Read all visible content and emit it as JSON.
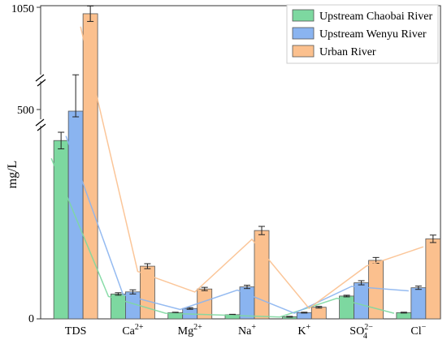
{
  "chart_data": {
    "type": "bar",
    "ylabel": "mg/L",
    "y_ticks": [
      "0",
      "500",
      "1050"
    ],
    "y_axis_break": true,
    "legend_position": "top-right",
    "categories": [
      {
        "base": "TDS",
        "sup": "",
        "sub": ""
      },
      {
        "base": "Ca",
        "sup": "2+",
        "sub": ""
      },
      {
        "base": "Mg",
        "sup": "2+",
        "sub": ""
      },
      {
        "base": "Na",
        "sup": "+",
        "sub": ""
      },
      {
        "base": "K",
        "sup": "+",
        "sub": ""
      },
      {
        "base": "SO",
        "sup": "2−",
        "sub": "4"
      },
      {
        "base": "Cl",
        "sup": "−",
        "sub": ""
      }
    ],
    "series": [
      {
        "name": "Upstream Chaobai River",
        "color": "#7dd8a0",
        "values": [
          430,
          60,
          15,
          10,
          5,
          55,
          15
        ],
        "errors": [
          20,
          3,
          1,
          1,
          1,
          2,
          1
        ]
      },
      {
        "name": "Upstream Wenyu River",
        "color": "#8ab4f0",
        "values": [
          490,
          65,
          25,
          77,
          15,
          87,
          75
        ],
        "errors": [
          35,
          5,
          2,
          4,
          1,
          5,
          4
        ]
      },
      {
        "name": "Urban River",
        "color": "#fbc08e",
        "values": [
          1000,
          127,
          72,
          213,
          28,
          141,
          193
        ],
        "errors": [
          60,
          6,
          4,
          10,
          2,
          7,
          9
        ]
      }
    ],
    "trend_lines": true,
    "trend_line_style": "thin lines connecting each series' bar tops"
  }
}
